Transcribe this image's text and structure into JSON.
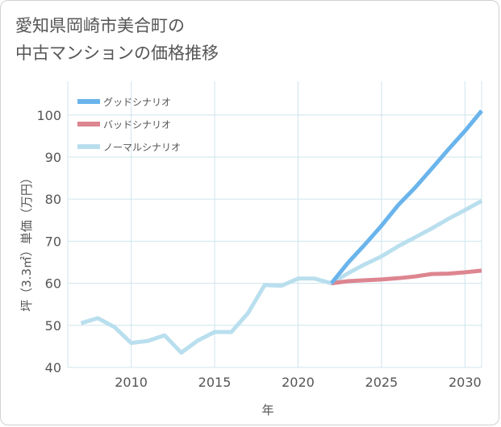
{
  "title_line1": "愛知県岡崎市美合町の",
  "title_line2": "中古マンションの価格推移",
  "chart_data": {
    "type": "line",
    "xlabel": "年",
    "ylabel": "坪（3.3㎡）単価（万円）",
    "xlim": [
      2006.2,
      2031
    ],
    "ylim": [
      40,
      108
    ],
    "x_ticks": [
      2010,
      2015,
      2020,
      2025,
      2030
    ],
    "y_ticks": [
      40,
      50,
      60,
      70,
      80,
      90,
      100
    ],
    "legend_position": "top-left",
    "series": [
      {
        "name": "グッドシナリオ",
        "color": "#6ab4ec",
        "x": [
          2022,
          2023,
          2024,
          2025,
          2026,
          2027,
          2028,
          2029,
          2030,
          2031
        ],
        "values": [
          60,
          64.9,
          69.2,
          73.7,
          78.6,
          82.7,
          87.2,
          91.8,
          96.2,
          101
        ]
      },
      {
        "name": "バッドシナリオ",
        "color": "#dd8590",
        "x": [
          2022,
          2023,
          2024,
          2025,
          2026,
          2027,
          2028,
          2029,
          2030,
          2031
        ],
        "values": [
          60,
          60.5,
          60.7,
          60.9,
          61.2,
          61.6,
          62.2,
          62.3,
          62.6,
          63
        ]
      },
      {
        "name": "ノーマルシナリオ",
        "color": "#b9dfee",
        "x": [
          2007,
          2008,
          2009,
          2010,
          2011,
          2012,
          2013,
          2014,
          2015,
          2016,
          2017,
          2018,
          2019,
          2020,
          2021,
          2022,
          2023,
          2024,
          2025,
          2026,
          2027,
          2028,
          2029,
          2030,
          2031
        ],
        "values": [
          50.5,
          51.7,
          49.6,
          45.8,
          46.3,
          47.6,
          43.5,
          46.4,
          48.4,
          48.4,
          52.9,
          59.6,
          59.4,
          61.1,
          61.1,
          60,
          62.4,
          64.5,
          66.4,
          68.8,
          70.9,
          73,
          75.3,
          77.4,
          79.6
        ]
      }
    ]
  }
}
